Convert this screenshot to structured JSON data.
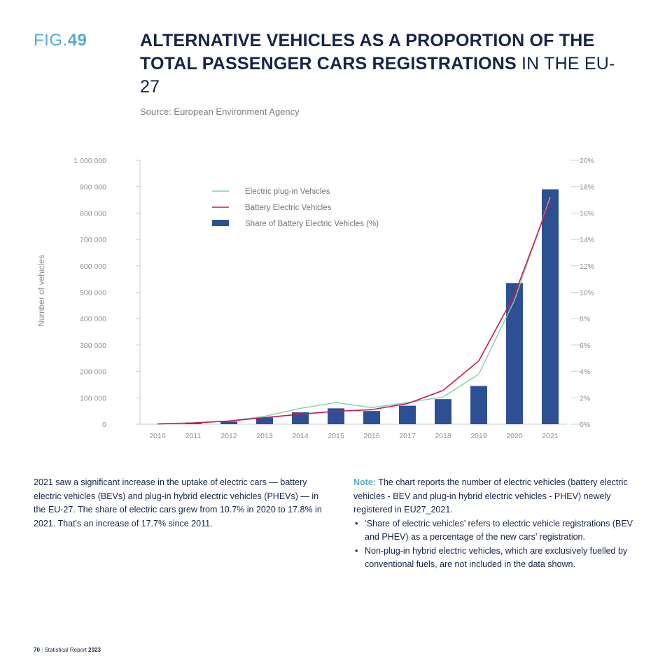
{
  "header": {
    "fig_prefix": "FIG.",
    "fig_number": "49",
    "title_bold": "ALTERNATIVE VEHICLES AS A PROPORTION OF THE TOTAL PASSENGER CARS REGISTRATIONS",
    "title_light": " IN THE EU-27",
    "source": "Source: European Environment Agency"
  },
  "chart_data": {
    "type": "bar",
    "categories": [
      "2010",
      "2011",
      "2012",
      "2013",
      "2014",
      "2015",
      "2016",
      "2017",
      "2018",
      "2019",
      "2020",
      "2021"
    ],
    "ylabel": "Number of vehicles",
    "ylim": [
      0,
      1000000
    ],
    "y2lim": [
      0,
      20
    ],
    "left_ticks": [
      "0",
      "100 000",
      "200 000",
      "300 000",
      "400 000",
      "500 000",
      "600 000",
      "700 000",
      "800 000",
      "900 000",
      "1 000 000"
    ],
    "right_ticks": [
      "0%",
      "2%",
      "4%",
      "6%",
      "8%",
      "10%",
      "12%",
      "14%",
      "16%",
      "18%",
      "20%"
    ],
    "legend_position": "top-left",
    "colors": {
      "plugin": "#7fd49a",
      "bev": "#d0135a",
      "share": "#2d5095"
    },
    "series": [
      {
        "name": "Electric plug-in Vehicles",
        "kind": "line",
        "axis": "left",
        "values": [
          1000,
          5000,
          12000,
          30000,
          60000,
          82000,
          63000,
          82000,
          103000,
          190000,
          470000,
          860000
        ]
      },
      {
        "name": "Battery Electric Vehicles",
        "kind": "line",
        "axis": "left",
        "values": [
          1000,
          5000,
          12000,
          25000,
          38000,
          49000,
          55000,
          78000,
          128000,
          240000,
          490000,
          850000
        ]
      },
      {
        "name": "Share of Battery Electric Vehicles (%)",
        "kind": "bar",
        "axis": "right",
        "values": [
          0.0,
          0.1,
          0.2,
          0.5,
          0.9,
          1.2,
          1.0,
          1.4,
          1.9,
          2.9,
          10.7,
          17.8
        ]
      }
    ]
  },
  "summary": "2021 saw a significant increase in the uptake of electric cars — battery electric vehicles (BEVs) and plug-in hybrid electric vehicles (PHEVs) — in the EU-27. The share of electric cars grew from 10.7% in 2020 to 17.8% in 2021. That's an increase of 17.7% since 2011.",
  "note": {
    "label": "Note:",
    "text": " The chart reports the number of electric vehicles (battery electric vehicles - BEV and plug-in hybrid electric vehicles - PHEV) newely registered in EU27_2021.",
    "bullet_char": "•",
    "bullets": [
      "‘Share of electric vehicles’ refers to electric vehicle registrations (BEV and PHEV) as a percentage of the new cars’ registration.",
      "Non-plug-in hybrid electric vehicles, which are exclusively fuelled by conventional fuels, are not included in the data shown."
    ]
  },
  "footer": {
    "page": "70",
    "separator": "|",
    "report": " Statistical Report ",
    "year": "2023"
  }
}
